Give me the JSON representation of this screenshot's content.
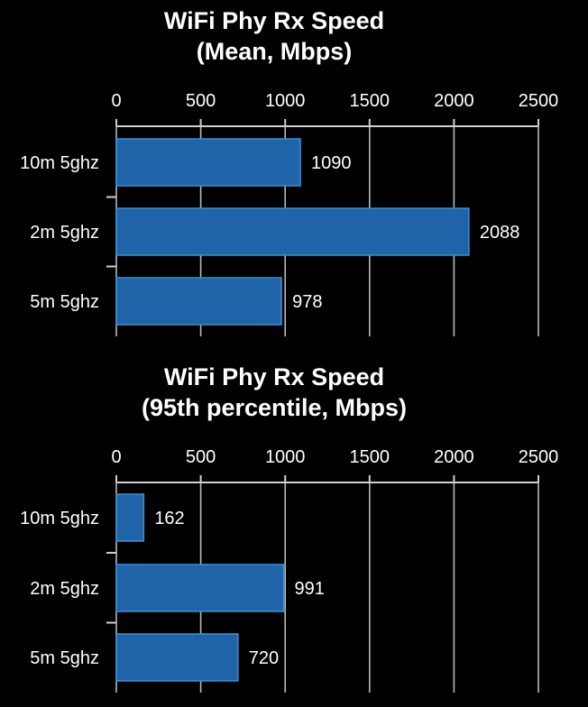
{
  "chart_data": [
    {
      "type": "bar",
      "orientation": "horizontal",
      "title": [
        "WiFi Phy Rx Speed",
        "(Mean, Mbps)"
      ],
      "categories": [
        "10m 5ghz",
        "2m 5ghz",
        "5m 5ghz"
      ],
      "values": [
        1090,
        2088,
        978
      ],
      "xlim": [
        0,
        2500
      ],
      "xticks": [
        0,
        500,
        1000,
        1500,
        2000,
        2500
      ],
      "xaxis_position": "top",
      "grid": true,
      "bar_color": "#1f64a8",
      "bar_edge_color": "#3b8fd6"
    },
    {
      "type": "bar",
      "orientation": "horizontal",
      "title": [
        "WiFi Phy Rx Speed",
        "(95th percentile, Mbps)"
      ],
      "categories": [
        "10m 5ghz",
        "2m 5ghz",
        "5m 5ghz"
      ],
      "values": [
        162,
        991,
        720
      ],
      "xlim": [
        0,
        2500
      ],
      "xticks": [
        0,
        500,
        1000,
        1500,
        2000,
        2500
      ],
      "xaxis_position": "top",
      "grid": true,
      "bar_color": "#1f64a8",
      "bar_edge_color": "#3b8fd6"
    }
  ]
}
